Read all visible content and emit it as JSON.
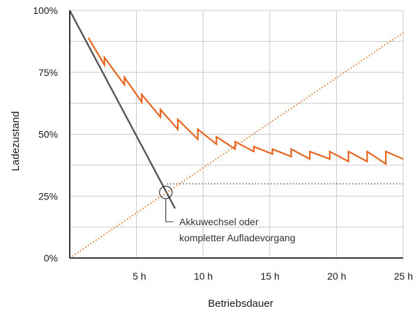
{
  "colors": {
    "orange": "#e8641e",
    "dark": "#555555",
    "grid": "#c8c8c8",
    "axis": "#1a1a1a",
    "dotted_flat": "#777777",
    "dotted_up": "#e0742e"
  },
  "chart_data": {
    "type": "line",
    "title": "",
    "xlabel": "Betriebsdauer",
    "ylabel": "Ladezustand",
    "xlim": [
      0,
      25
    ],
    "ylim": [
      0,
      100
    ],
    "x_ticks": [
      {
        "value": 5,
        "label": "5 h"
      },
      {
        "value": 10,
        "label": "10 h"
      },
      {
        "value": 15,
        "label": "15 h"
      },
      {
        "value": 20,
        "label": "20 h"
      },
      {
        "value": 25,
        "label": "25 h"
      }
    ],
    "y_ticks": [
      {
        "value": 0,
        "label": "0%"
      },
      {
        "value": 25,
        "label": "25%"
      },
      {
        "value": 50,
        "label": "50%"
      },
      {
        "value": 75,
        "label": "75%"
      },
      {
        "value": 100,
        "label": "100%"
      }
    ],
    "grid": true,
    "annotation": {
      "lines": [
        "Akkuwechsel oder",
        "kompletter Aufladevorgang"
      ],
      "marker_x": 7.2,
      "marker_y": 26.5
    },
    "series": [
      {
        "style": "solid",
        "color_key": "orange",
        "x": [
          1.4,
          2.6,
          2.6,
          4.1,
          4.1,
          5.4,
          5.4,
          6.8,
          6.8,
          8.1,
          8.1,
          9.6,
          9.6,
          11.0,
          11.0,
          12.4,
          12.4,
          13.8,
          13.8,
          15.2,
          15.2,
          16.6,
          16.6,
          18.0,
          18.0,
          19.5,
          19.5,
          20.9,
          20.9,
          22.3,
          22.3,
          23.7,
          23.7,
          25.0
        ],
        "y": [
          89,
          78,
          81,
          70,
          73,
          63,
          66,
          57,
          60,
          52,
          56,
          48,
          52,
          46,
          49,
          44,
          47,
          43,
          45,
          42,
          44,
          41,
          44,
          40,
          43,
          40,
          43,
          39,
          43,
          39,
          43,
          38,
          43,
          40
        ]
      },
      {
        "style": "solid",
        "color_key": "dark",
        "x": [
          0,
          7.9
        ],
        "y": [
          100,
          20
        ]
      },
      {
        "style": "dotted",
        "color_key": "dotted_up",
        "x": [
          0,
          25
        ],
        "y": [
          0,
          91
        ]
      },
      {
        "style": "dotted",
        "color_key": "dotted_flat",
        "x": [
          7.3,
          25
        ],
        "y": [
          30,
          30
        ]
      }
    ]
  }
}
